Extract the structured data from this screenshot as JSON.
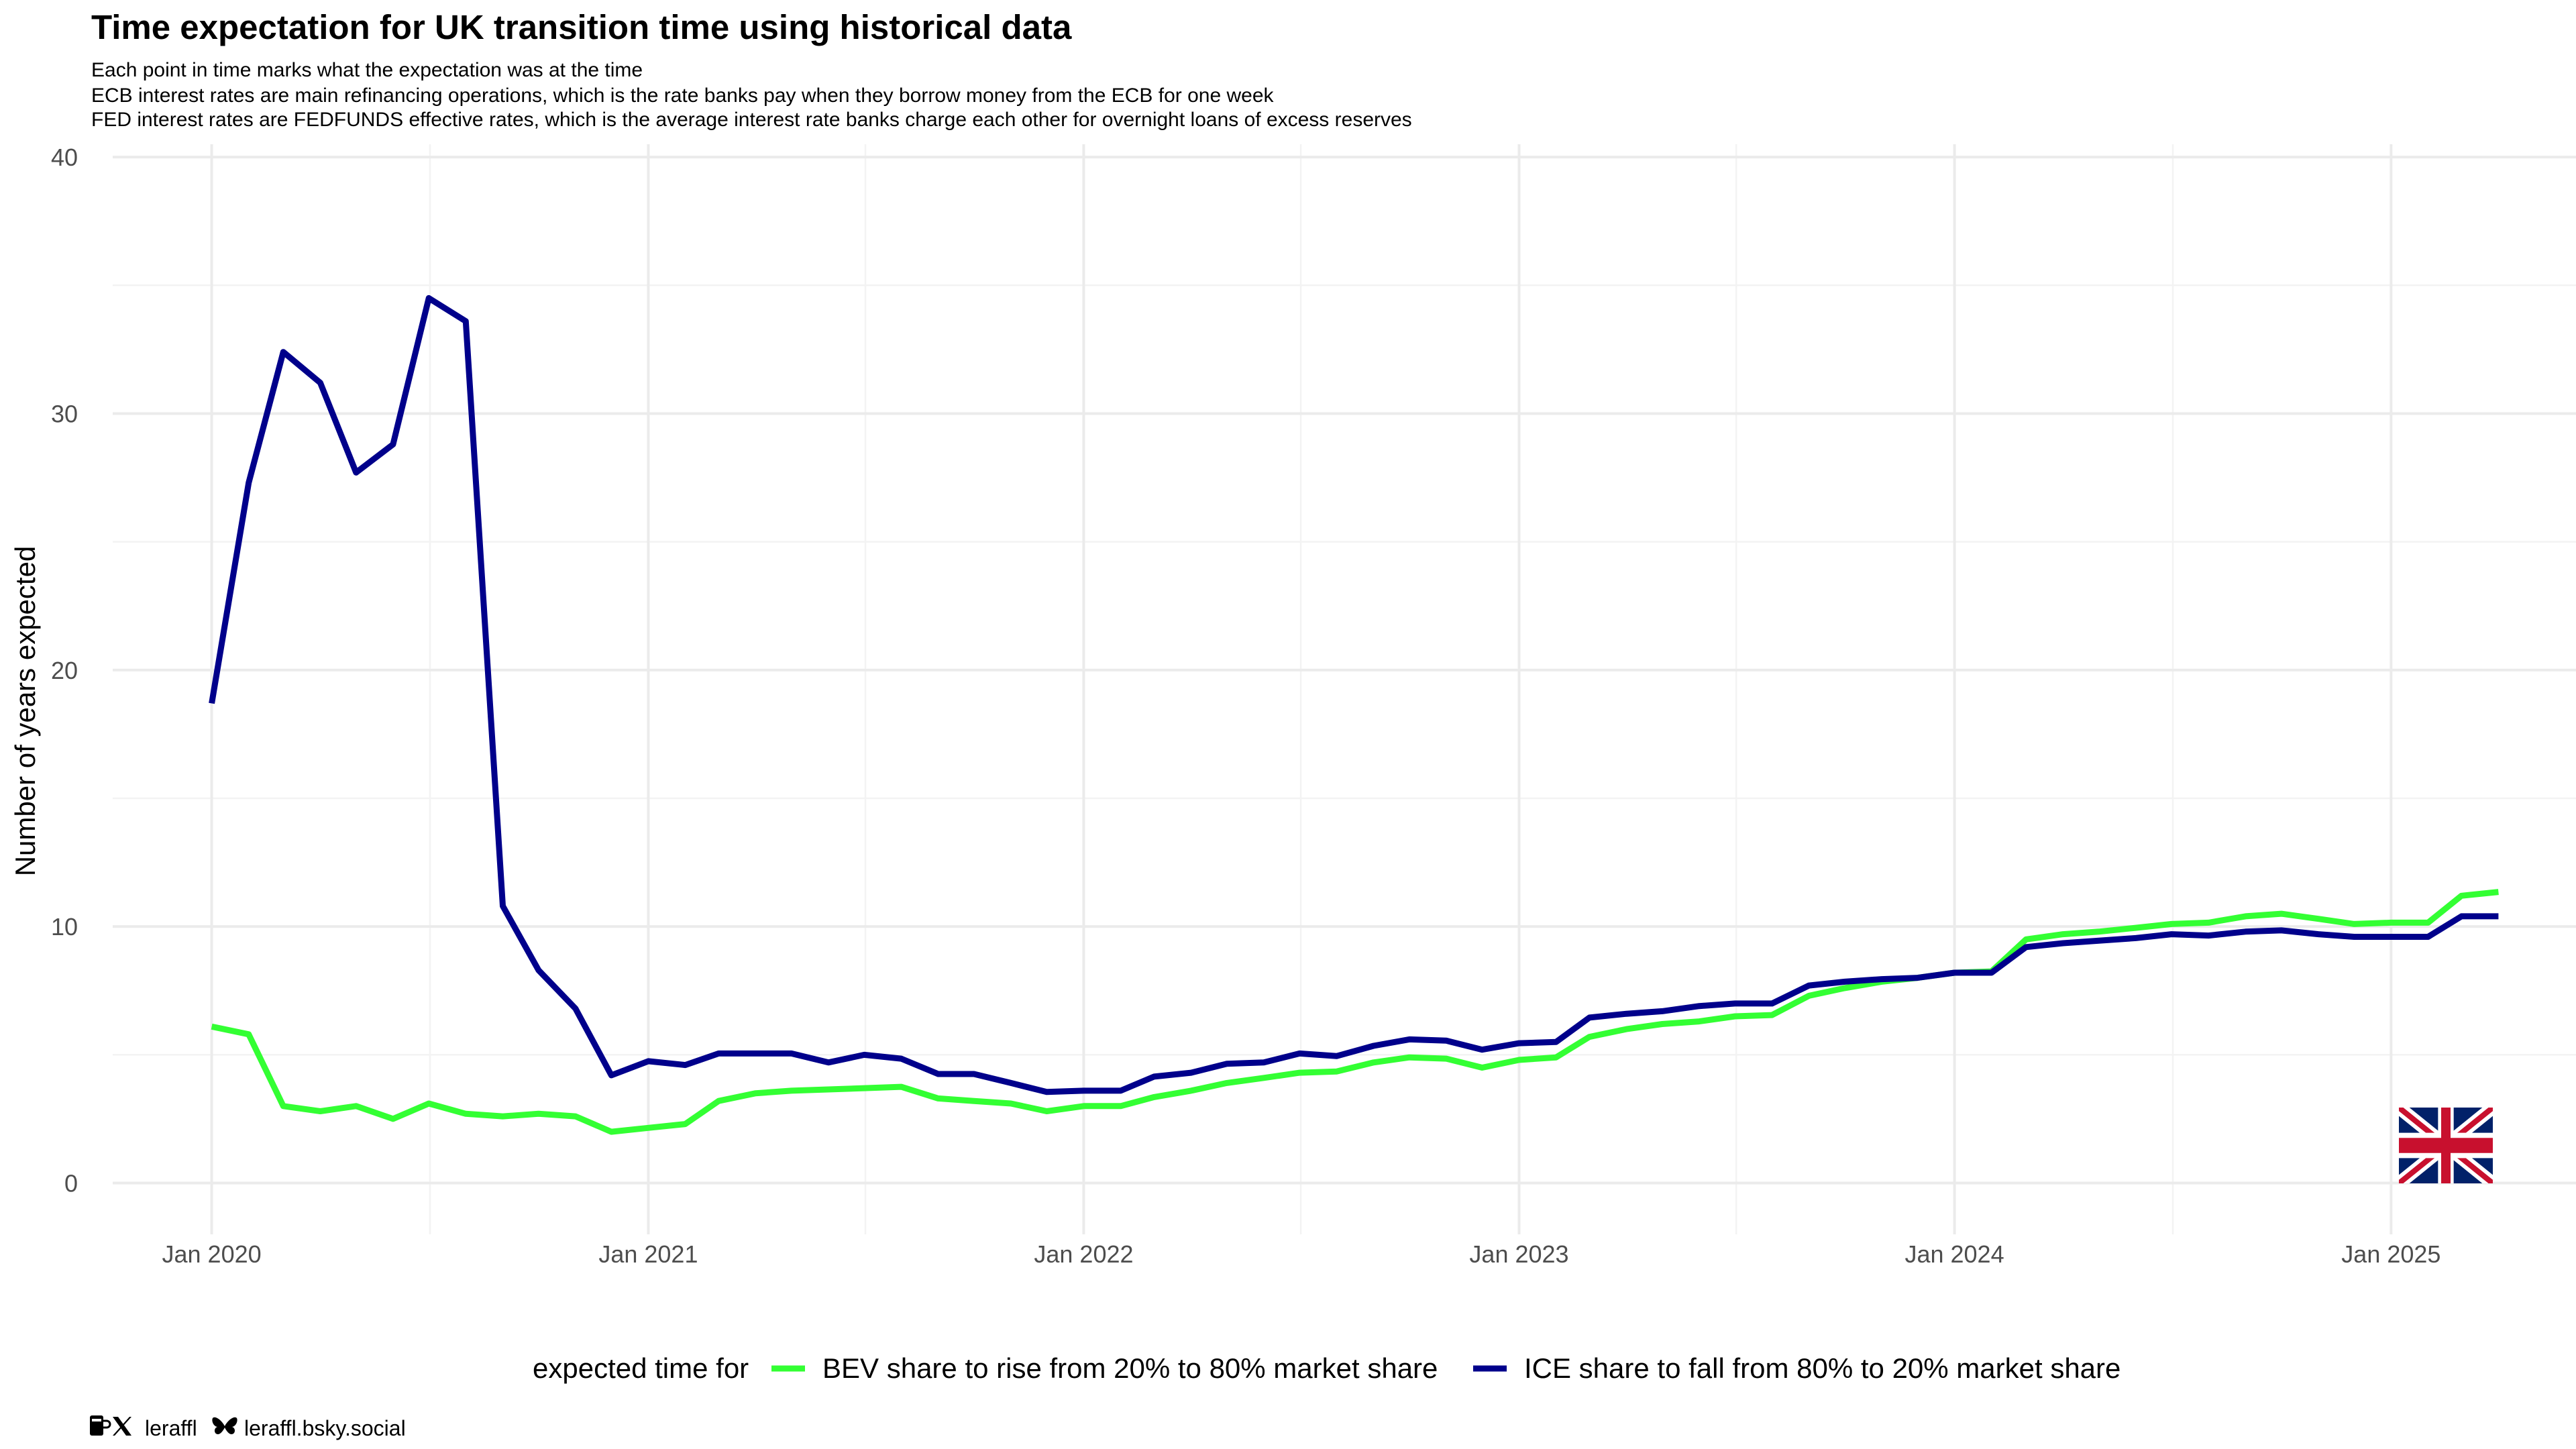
{
  "chart_data": {
    "type": "line",
    "title": "Time expectation for UK transition time using historical data",
    "subtitle": [
      "Each point in time marks what the expectation was at the time",
      "ECB interest rates are main refinancing operations, which is the rate banks pay when they borrow money from the ECB for one week",
      "FED interest rates are FEDFUNDS effective rates, which is the average interest rate banks charge each other for overnight loans of excess reserves"
    ],
    "xlabel": "",
    "ylabel": "Number of years expected",
    "ylim": [
      -2,
      40.5
    ],
    "xlim": [
      "2019-10-10",
      "2025-06-05"
    ],
    "y_ticks": [
      0,
      10,
      20,
      30,
      40
    ],
    "x_ticks": [
      {
        "date": "2020-01-01",
        "label": "Jan 2020"
      },
      {
        "date": "2021-01-01",
        "label": "Jan 2021"
      },
      {
        "date": "2022-01-01",
        "label": "Jan 2022"
      },
      {
        "date": "2023-01-01",
        "label": "Jan 2023"
      },
      {
        "date": "2024-01-01",
        "label": "Jan 2024"
      },
      {
        "date": "2025-01-01",
        "label": "Jan 2025"
      }
    ],
    "grid": true,
    "legend_position": "bottom",
    "legend_title": "expected time for",
    "x": [
      "2020-01-01",
      "2020-02-01",
      "2020-03-01",
      "2020-04-01",
      "2020-05-01",
      "2020-06-01",
      "2020-07-01",
      "2020-08-01",
      "2020-09-01",
      "2020-10-01",
      "2020-11-01",
      "2020-12-01",
      "2021-01-01",
      "2021-02-01",
      "2021-03-01",
      "2021-04-01",
      "2021-05-01",
      "2021-06-01",
      "2021-07-01",
      "2021-08-01",
      "2021-09-01",
      "2021-10-01",
      "2021-11-01",
      "2021-12-01",
      "2022-01-01",
      "2022-02-01",
      "2022-03-01",
      "2022-04-01",
      "2022-05-01",
      "2022-06-01",
      "2022-07-01",
      "2022-08-01",
      "2022-09-01",
      "2022-10-01",
      "2022-11-01",
      "2022-12-01",
      "2023-01-01",
      "2023-02-01",
      "2023-03-01",
      "2023-04-01",
      "2023-05-01",
      "2023-06-01",
      "2023-07-01",
      "2023-08-01",
      "2023-09-01",
      "2023-10-01",
      "2023-11-01",
      "2023-12-01",
      "2024-01-01",
      "2024-02-01",
      "2024-03-01",
      "2024-04-01",
      "2024-05-01",
      "2024-06-01",
      "2024-07-01",
      "2024-08-01",
      "2024-09-01",
      "2024-10-01",
      "2024-11-01",
      "2024-12-01",
      "2025-01-01",
      "2025-02-01",
      "2025-03-01",
      "2025-04-01"
    ],
    "series": [
      {
        "name": "BEV share to rise from 20% to 80% market share",
        "color": "#33ff33",
        "values": [
          6.1,
          5.8,
          3.0,
          2.8,
          3.0,
          2.5,
          3.1,
          2.7,
          2.6,
          2.7,
          2.6,
          2.0,
          2.15,
          2.3,
          3.2,
          3.5,
          3.6,
          3.65,
          3.7,
          3.75,
          3.3,
          3.2,
          3.1,
          2.8,
          3.0,
          3.0,
          3.35,
          3.6,
          3.9,
          4.1,
          4.3,
          4.35,
          4.7,
          4.9,
          4.85,
          4.5,
          4.8,
          4.9,
          5.7,
          6.0,
          6.2,
          6.3,
          6.5,
          6.55,
          7.3,
          7.6,
          7.85,
          8.0,
          8.2,
          8.25,
          9.5,
          9.7,
          9.8,
          9.95,
          10.1,
          10.15,
          10.4,
          10.5,
          10.3,
          10.1,
          10.15,
          10.15,
          11.2,
          11.35
        ]
      },
      {
        "name": "ICE share to fall from 80% to 20% market share",
        "color": "#00008b",
        "values": [
          18.7,
          27.3,
          32.4,
          31.2,
          27.7,
          28.8,
          34.5,
          33.6,
          10.8,
          8.3,
          6.8,
          4.2,
          4.75,
          4.6,
          5.05,
          5.05,
          5.05,
          4.7,
          5.0,
          4.85,
          4.25,
          4.25,
          3.9,
          3.55,
          3.6,
          3.6,
          4.15,
          4.3,
          4.65,
          4.7,
          5.05,
          4.95,
          5.35,
          5.6,
          5.55,
          5.2,
          5.45,
          5.5,
          6.45,
          6.6,
          6.7,
          6.9,
          7.0,
          7.0,
          7.7,
          7.85,
          7.95,
          8.0,
          8.2,
          8.2,
          9.2,
          9.35,
          9.45,
          9.55,
          9.7,
          9.65,
          9.8,
          9.85,
          9.7,
          9.6,
          9.6,
          9.6,
          10.4,
          10.4
        ]
      }
    ]
  },
  "caption": {
    "handle": "leraffl",
    "bluesky": "leraffl.bsky.social"
  },
  "icons": [
    "uk-flag-icon",
    "kofi-cup-icon",
    "x-logo-icon",
    "butterfly-icon"
  ]
}
